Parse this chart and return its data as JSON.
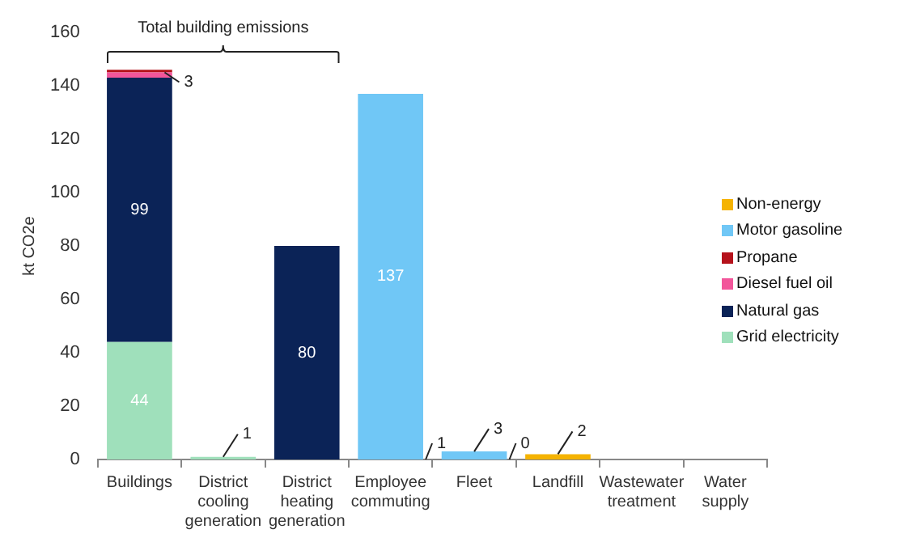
{
  "chart_data": {
    "type": "bar",
    "stacked": true,
    "ylabel": "kt CO2e",
    "categories": [
      "Buildings",
      "District cooling generation",
      "District heating generation",
      "Employee commuting",
      "Fleet",
      "Landfill",
      "Wastewater treatment",
      "Water supply"
    ],
    "series": [
      {
        "name": "Grid electricity",
        "color": "#9fe0bb",
        "values": [
          44,
          1,
          null,
          null,
          null,
          null,
          null,
          null
        ],
        "value_labels": [
          "44",
          null,
          null,
          null,
          null,
          null,
          null,
          null
        ]
      },
      {
        "name": "Natural gas",
        "color": "#0b2357",
        "values": [
          99,
          null,
          80,
          null,
          null,
          null,
          null,
          null
        ],
        "value_labels": [
          "99",
          null,
          "80",
          null,
          null,
          null,
          null,
          null
        ]
      },
      {
        "name": "Diesel fuel oil",
        "color": "#f2569b",
        "values": [
          2,
          null,
          null,
          null,
          null,
          null,
          null,
          null
        ]
      },
      {
        "name": "Propane",
        "color": "#b5121b",
        "values": [
          1,
          null,
          null,
          null,
          null,
          null,
          null,
          null
        ]
      },
      {
        "name": "Motor gasoline",
        "color": "#70c7f6",
        "values": [
          null,
          null,
          null,
          137,
          3,
          null,
          null,
          null
        ],
        "value_labels": [
          null,
          null,
          null,
          "137",
          null,
          null,
          null,
          null
        ]
      },
      {
        "name": "Non-energy",
        "color": "#f5b301",
        "values": [
          null,
          null,
          null,
          null,
          null,
          2,
          null,
          null
        ]
      }
    ],
    "ylim": [
      0,
      160
    ],
    "yticks": [
      0,
      20,
      40,
      60,
      80,
      100,
      120,
      140,
      160
    ],
    "grid": false,
    "legend": "right",
    "annotations": [
      "Total building emissions",
      {
        "text": "3",
        "x": "Buildings",
        "y": 145
      },
      {
        "text": "1",
        "x": "District cooling generation",
        "y": 1
      },
      {
        "text": "1",
        "x": "Employee commuting",
        "y": 0
      },
      {
        "text": "3",
        "x": "Fleet",
        "y": 3
      },
      {
        "text": "0",
        "x": "Fleet",
        "y": 0
      },
      {
        "text": "2",
        "x": "Landfill",
        "y": 2
      }
    ]
  }
}
